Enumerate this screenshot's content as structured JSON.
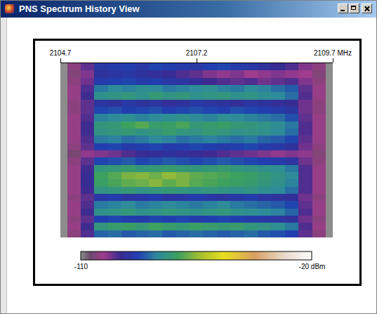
{
  "chart_data": {
    "type": "heatmap",
    "title": "PNS Spectrum History View",
    "x": [
      2104.7,
      2104.95,
      2105.2,
      2105.45,
      2105.7,
      2105.95,
      2106.2,
      2106.45,
      2106.7,
      2106.95,
      2107.2,
      2107.45,
      2107.7,
      2107.95,
      2108.2,
      2108.45,
      2108.7,
      2108.95,
      2109.2,
      2109.45,
      2109.7
    ],
    "xlim": [
      2104.7,
      2109.7
    ],
    "xticks": [
      2104.7,
      2107.2,
      {
        "value": 2109.7,
        "label": "2109.7 MHz"
      }
    ],
    "tick_labels": "x",
    "z": [
      [
        -110,
        -103,
        -97,
        -90,
        -89,
        -88,
        -90,
        -87,
        -88,
        -89,
        -90,
        -88,
        -87,
        -89,
        -90,
        -92,
        -94,
        -96,
        -99,
        -103,
        -110
      ],
      [
        -110,
        -104,
        -99,
        -92,
        -91,
        -90,
        -92,
        -93,
        -94,
        -96,
        -97,
        -99,
        -100,
        -99,
        -101,
        -100,
        -99,
        -100,
        -101,
        -104,
        -110
      ],
      [
        -110,
        -103,
        -98,
        -89,
        -88,
        -87,
        -89,
        -88,
        -90,
        -91,
        -93,
        -95,
        -96,
        -97,
        -96,
        -98,
        -97,
        -96,
        -99,
        -103,
        -110
      ],
      [
        -110,
        -102,
        -96,
        -82,
        -80,
        -81,
        -79,
        -80,
        -82,
        -81,
        -80,
        -79,
        -81,
        -82,
        -80,
        -81,
        -83,
        -85,
        -97,
        -102,
        -110
      ],
      [
        -110,
        -102,
        -95,
        -78,
        -77,
        -76,
        -78,
        -75,
        -77,
        -76,
        -78,
        -77,
        -76,
        -78,
        -77,
        -79,
        -80,
        -83,
        -96,
        -102,
        -110
      ],
      [
        -110,
        -103,
        -97,
        -91,
        -92,
        -90,
        -92,
        -91,
        -93,
        -92,
        -90,
        -91,
        -92,
        -93,
        -91,
        -92,
        -93,
        -94,
        -98,
        -103,
        -110
      ],
      [
        -110,
        -103,
        -97,
        -87,
        -86,
        -88,
        -87,
        -86,
        -88,
        -87,
        -86,
        -87,
        -88,
        -86,
        -87,
        -88,
        -89,
        -91,
        -98,
        -103,
        -110
      ],
      [
        -110,
        -102,
        -96,
        -81,
        -80,
        -79,
        -81,
        -80,
        -79,
        -78,
        -80,
        -81,
        -79,
        -80,
        -81,
        -82,
        -83,
        -86,
        -97,
        -102,
        -110
      ],
      [
        -110,
        -102,
        -95,
        -76,
        -75,
        -72,
        -70,
        -74,
        -73,
        -71,
        -75,
        -74,
        -73,
        -75,
        -76,
        -77,
        -79,
        -82,
        -96,
        -102,
        -110
      ],
      [
        -110,
        -102,
        -95,
        -77,
        -76,
        -75,
        -77,
        -76,
        -74,
        -76,
        -77,
        -75,
        -76,
        -78,
        -77,
        -78,
        -80,
        -83,
        -96,
        -102,
        -110
      ],
      [
        -110,
        -102,
        -96,
        -82,
        -81,
        -83,
        -82,
        -80,
        -81,
        -83,
        -82,
        -81,
        -82,
        -83,
        -82,
        -84,
        -85,
        -87,
        -97,
        -102,
        -110
      ],
      [
        -110,
        -103,
        -97,
        -88,
        -87,
        -89,
        -88,
        -87,
        -89,
        -88,
        -87,
        -88,
        -89,
        -88,
        -87,
        -89,
        -90,
        -92,
        -98,
        -103,
        -110
      ],
      [
        -110,
        -105,
        -100,
        -99,
        -98,
        -96,
        -94,
        -93,
        -92,
        -93,
        -94,
        -95,
        -96,
        -97,
        -98,
        -99,
        -100,
        -99,
        -100,
        -104,
        -110
      ],
      [
        -110,
        -103,
        -97,
        -87,
        -86,
        -85,
        -87,
        -86,
        -85,
        -86,
        -87,
        -86,
        -85,
        -86,
        -87,
        -88,
        -89,
        -91,
        -98,
        -103,
        -110
      ],
      [
        -110,
        -102,
        -95,
        -76,
        -75,
        -74,
        -76,
        -75,
        -74,
        -75,
        -76,
        -75,
        -74,
        -76,
        -77,
        -78,
        -79,
        -82,
        -96,
        -102,
        -110
      ],
      [
        -110,
        -102,
        -94,
        -72,
        -70,
        -67,
        -66,
        -68,
        -65,
        -67,
        -69,
        -70,
        -71,
        -72,
        -73,
        -75,
        -77,
        -80,
        -96,
        -102,
        -110
      ],
      [
        -110,
        -102,
        -94,
        -73,
        -71,
        -69,
        -68,
        -66,
        -69,
        -67,
        -70,
        -71,
        -72,
        -73,
        -74,
        -76,
        -78,
        -81,
        -96,
        -102,
        -110
      ],
      [
        -110,
        -102,
        -95,
        -77,
        -76,
        -75,
        -77,
        -76,
        -75,
        -76,
        -77,
        -76,
        -77,
        -78,
        -77,
        -79,
        -80,
        -83,
        -96,
        -102,
        -110
      ],
      [
        -110,
        -103,
        -97,
        -90,
        -89,
        -91,
        -90,
        -89,
        -91,
        -90,
        -89,
        -90,
        -91,
        -90,
        -89,
        -91,
        -92,
        -93,
        -98,
        -103,
        -110
      ],
      [
        -110,
        -102,
        -96,
        -82,
        -81,
        -80,
        -82,
        -81,
        -80,
        -81,
        -82,
        -81,
        -80,
        -82,
        -83,
        -84,
        -85,
        -87,
        -97,
        -102,
        -110
      ],
      [
        -110,
        -102,
        -95,
        -78,
        -77,
        -76,
        -78,
        -77,
        -76,
        -77,
        -78,
        -77,
        -76,
        -78,
        -79,
        -80,
        -81,
        -84,
        -96,
        -102,
        -110
      ],
      [
        -110,
        -103,
        -97,
        -88,
        -87,
        -88,
        -89,
        -87,
        -88,
        -87,
        -89,
        -88,
        -87,
        -88,
        -89,
        -90,
        -91,
        -92,
        -98,
        -103,
        -110
      ],
      [
        -110,
        -102,
        -95,
        -76,
        -74,
        -73,
        -75,
        -72,
        -74,
        -75,
        -73,
        -74,
        -75,
        -74,
        -76,
        -77,
        -79,
        -82,
        -96,
        -102,
        -110
      ],
      [
        -110,
        -103,
        -96,
        -84,
        -83,
        -85,
        -84,
        -83,
        -85,
        -84,
        -83,
        -84,
        -85,
        -84,
        -83,
        -85,
        -86,
        -88,
        -97,
        -103,
        -110
      ]
    ],
    "colorbar_range": [
      -110,
      -20
    ],
    "colorbar_ticks": [
      -110,
      {
        "value": -20,
        "label": "-20 dBm"
      }
    ]
  }
}
